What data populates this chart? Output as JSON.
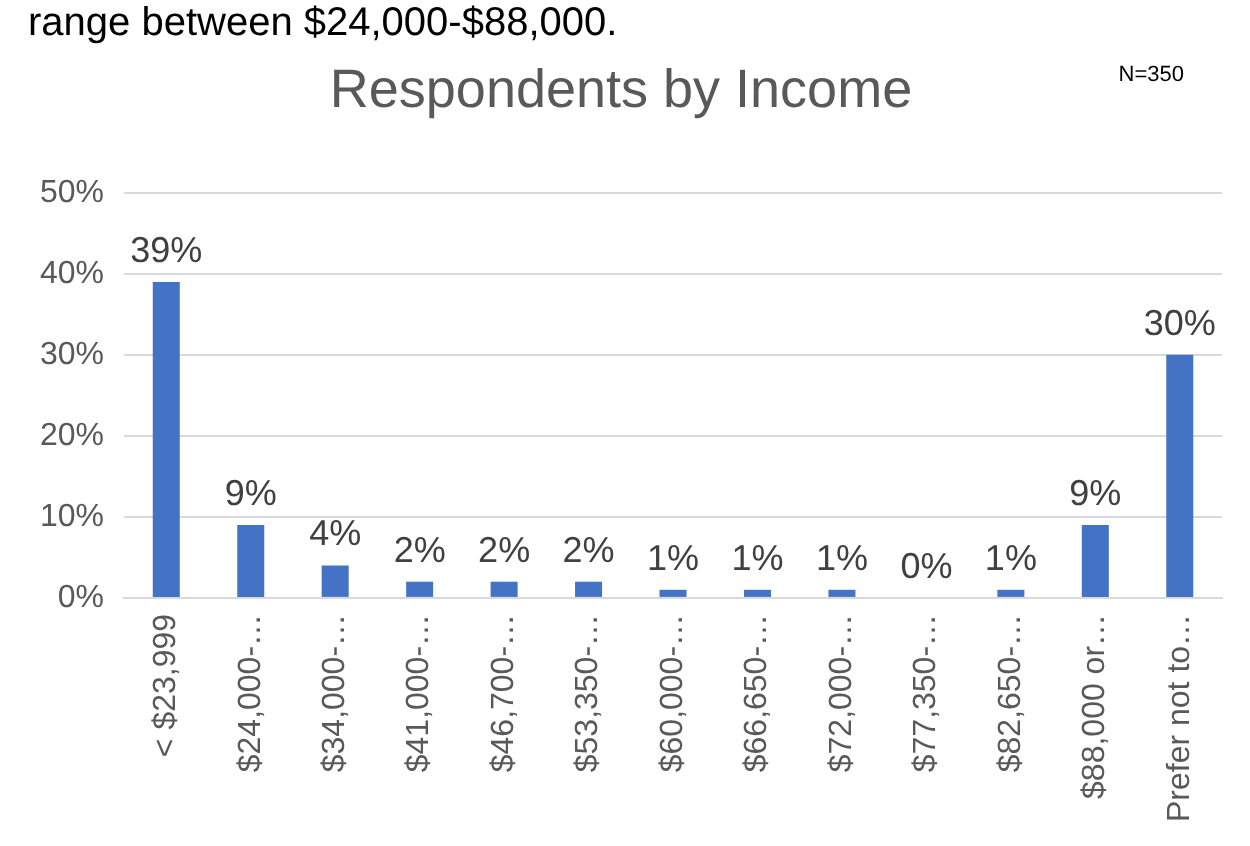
{
  "chart_data": {
    "type": "bar",
    "title": "Respondents by Income",
    "annotations": [
      "range between $24,000-$88,000.",
      "N=350"
    ],
    "categories": [
      "< $23,999",
      "$24,000-…",
      "$34,000-…",
      "$41,000-…",
      "$46,700-…",
      "$53,350-…",
      "$60,000-…",
      "$66,650-…",
      "$72,000-…",
      "$77,350-…",
      "$82,650-…",
      "$88,000 or…",
      "Prefer not to…"
    ],
    "values": [
      39,
      9,
      4,
      2,
      2,
      2,
      1,
      1,
      1,
      0,
      1,
      9,
      30
    ],
    "value_labels": [
      "39%",
      "9%",
      "4%",
      "2%",
      "2%",
      "2%",
      "1%",
      "1%",
      "1%",
      "0%",
      "1%",
      "9%",
      "30%"
    ],
    "color": "#4472c4",
    "ylim": [
      0,
      50
    ],
    "yticks": [
      {
        "value": 0,
        "label": "0%"
      },
      {
        "value": 10,
        "label": "10%"
      },
      {
        "value": 20,
        "label": "20%"
      },
      {
        "value": 30,
        "label": "30%"
      },
      {
        "value": 40,
        "label": "40%"
      },
      {
        "value": 50,
        "label": "50%"
      }
    ],
    "grid": "y",
    "legend": false
  }
}
